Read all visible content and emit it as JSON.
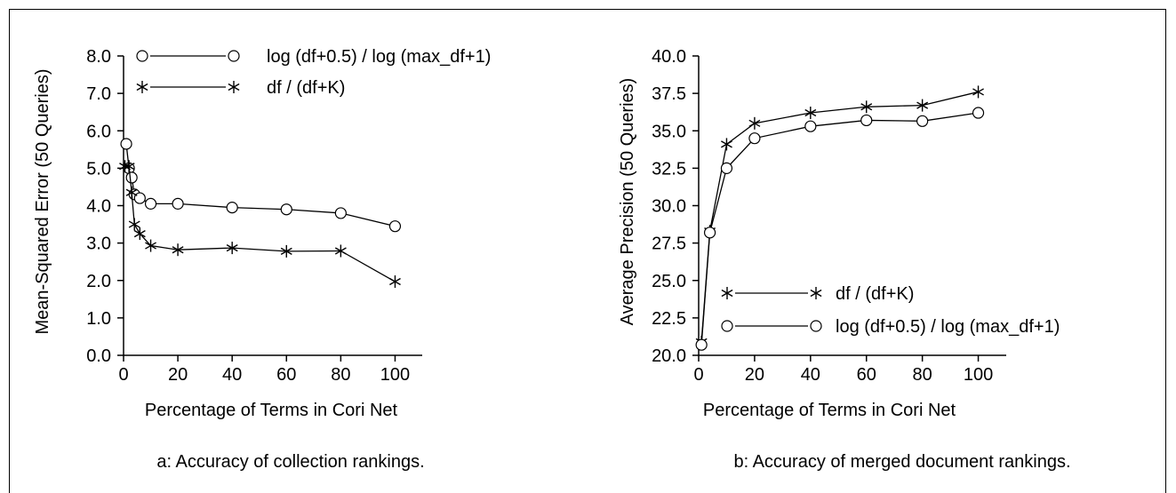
{
  "chart_data": [
    {
      "type": "line",
      "caption": "a:  Accuracy of collection rankings.",
      "xlabel": "Percentage of Terms in Cori Net",
      "ylabel": "Mean-Squared Error (50 Queries)",
      "xlim": [
        0,
        110
      ],
      "ylim": [
        0,
        8
      ],
      "xticks": [
        0,
        20,
        40,
        60,
        80,
        100
      ],
      "yticks": [
        0.0,
        1.0,
        2.0,
        3.0,
        4.0,
        5.0,
        6.0,
        7.0,
        8.0
      ],
      "ytick_labels": [
        "0.0",
        "1.0",
        "2.0",
        "3.0",
        "4.0",
        "5.0",
        "6.0",
        "7.0",
        "8.0"
      ],
      "xtick_labels": [
        "0",
        "20",
        "40",
        "60",
        "80",
        "100"
      ],
      "legend_position": "top",
      "series": [
        {
          "name": "log (df+0.5) / log (max_df+1)",
          "marker": "circle",
          "x": [
            1,
            2,
            3,
            4,
            6,
            10,
            20,
            40,
            60,
            80,
            100
          ],
          "y": [
            5.65,
            5.0,
            4.75,
            4.3,
            4.2,
            4.05,
            4.05,
            3.95,
            3.9,
            3.8,
            3.45
          ]
        },
        {
          "name": "df / (df+K)",
          "marker": "asterisk",
          "x": [
            0.5,
            2,
            3,
            4,
            6,
            10,
            20,
            40,
            60,
            80,
            100
          ],
          "y": [
            5.05,
            5.05,
            4.35,
            3.5,
            3.25,
            2.93,
            2.82,
            2.87,
            2.78,
            2.79,
            1.97
          ]
        }
      ]
    },
    {
      "type": "line",
      "caption": "b:  Accuracy of merged document rankings.",
      "xlabel": "Percentage of Terms in Cori Net",
      "ylabel": "Average Precision (50 Queries)",
      "xlim": [
        0,
        110
      ],
      "ylim": [
        20,
        40
      ],
      "xticks": [
        0,
        20,
        40,
        60,
        80,
        100
      ],
      "yticks": [
        20.0,
        22.5,
        25.0,
        27.5,
        30.0,
        32.5,
        35.0,
        37.5,
        40.0
      ],
      "ytick_labels": [
        "20.0",
        "22.5",
        "25.0",
        "27.5",
        "30.0",
        "32.5",
        "35.0",
        "37.5",
        "40.0"
      ],
      "xtick_labels": [
        "0",
        "20",
        "40",
        "60",
        "80",
        "100"
      ],
      "legend_position": "bottom-right",
      "series": [
        {
          "name": "df / (df+K)",
          "marker": "asterisk",
          "x": [
            1,
            4,
            10,
            20,
            40,
            60,
            80,
            100
          ],
          "y": [
            20.9,
            28.3,
            34.1,
            35.5,
            36.2,
            36.6,
            36.7,
            37.6
          ]
        },
        {
          "name": "log (df+0.5) / log (max_df+1)",
          "marker": "circle",
          "x": [
            1,
            4,
            10,
            20,
            40,
            60,
            80,
            100
          ],
          "y": [
            20.7,
            28.2,
            32.5,
            34.5,
            35.3,
            35.7,
            35.65,
            36.2
          ]
        }
      ]
    }
  ]
}
